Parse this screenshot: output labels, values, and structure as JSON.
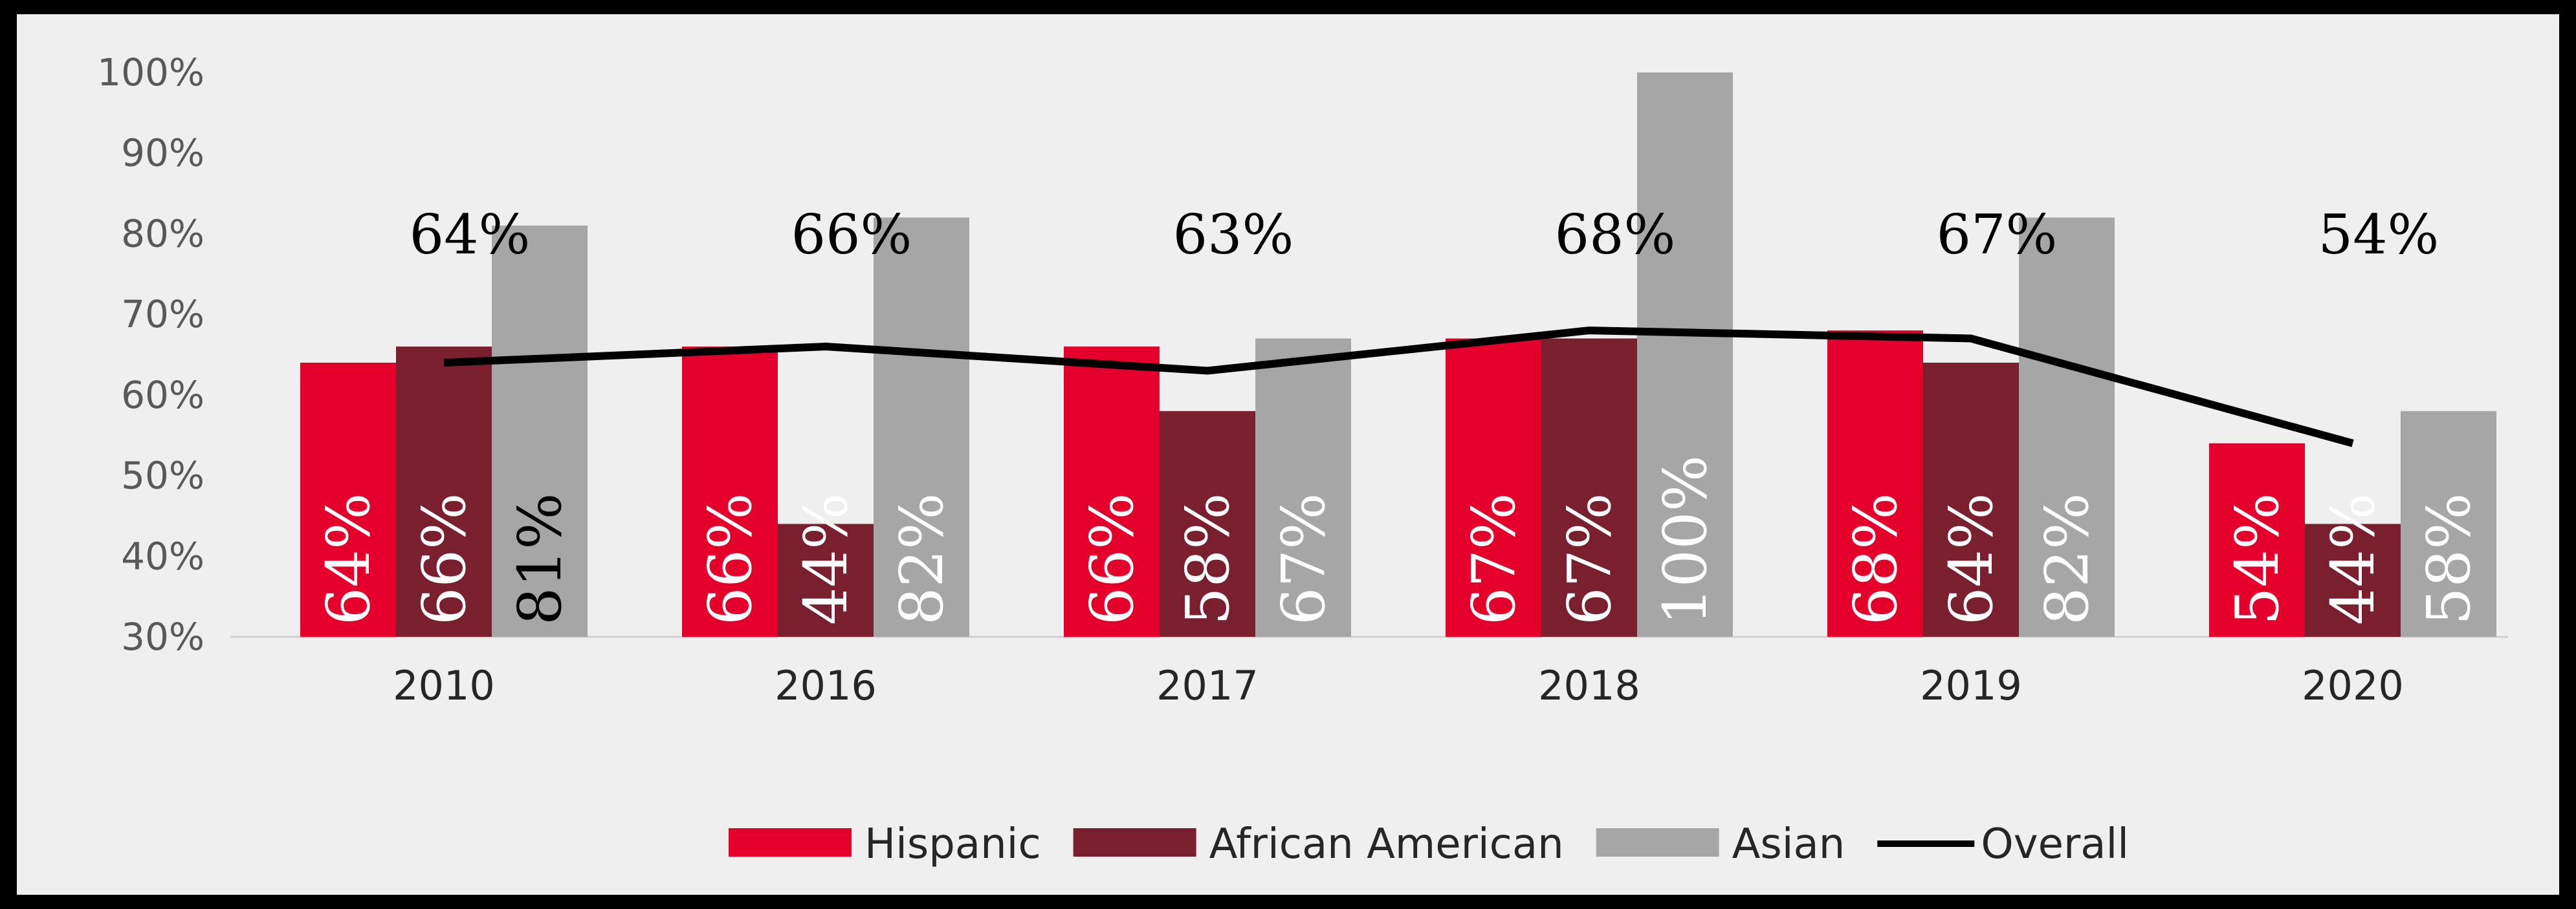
{
  "chart_data": {
    "type": "bar",
    "categories": [
      "2010",
      "2016",
      "2017",
      "2018",
      "2019",
      "2020"
    ],
    "series": [
      {
        "name": "Hispanic",
        "values": [
          64,
          66,
          66,
          67,
          68,
          54
        ],
        "labels": [
          "64%",
          "66%",
          "66%",
          "67%",
          "68%",
          "54%"
        ]
      },
      {
        "name": "African American",
        "values": [
          66,
          44,
          58,
          67,
          64,
          44
        ],
        "labels": [
          "66%",
          "44%",
          "58%",
          "67%",
          "64%",
          "44%"
        ]
      },
      {
        "name": "Asian",
        "values": [
          81,
          82,
          67,
          100,
          82,
          58
        ],
        "labels": [
          "81%",
          "82%",
          "67%",
          "100%",
          "82%",
          "58%"
        ]
      },
      {
        "name": "Overall",
        "type": "line",
        "values": [
          64,
          66,
          63,
          68,
          67,
          54
        ],
        "labels": [
          "64%",
          "66%",
          "63%",
          "68%",
          "67%",
          "54%"
        ]
      }
    ],
    "ylim": [
      30,
      100
    ],
    "yticks": [
      "30%",
      "40%",
      "50%",
      "60%",
      "70%",
      "80%",
      "90%",
      "100%"
    ],
    "legend_position": "bottom",
    "grid": false,
    "colors": {
      "Hispanic": "#e4002b",
      "African American": "#7a1f2e",
      "Asian": "#a6a6a6",
      "Overall": "#000000",
      "label_light": "#ffffff",
      "label_dark": "#000000"
    },
    "bar_label_colors": [
      [
        "#ffffff",
        "#ffffff",
        "#000000"
      ],
      [
        "#ffffff",
        "#ffffff",
        "#ffffff"
      ],
      [
        "#ffffff",
        "#ffffff",
        "#ffffff"
      ],
      [
        "#ffffff",
        "#ffffff",
        "#ffffff"
      ],
      [
        "#ffffff",
        "#ffffff",
        "#ffffff"
      ],
      [
        "#ffffff",
        "#ffffff",
        "#ffffff"
      ]
    ]
  }
}
